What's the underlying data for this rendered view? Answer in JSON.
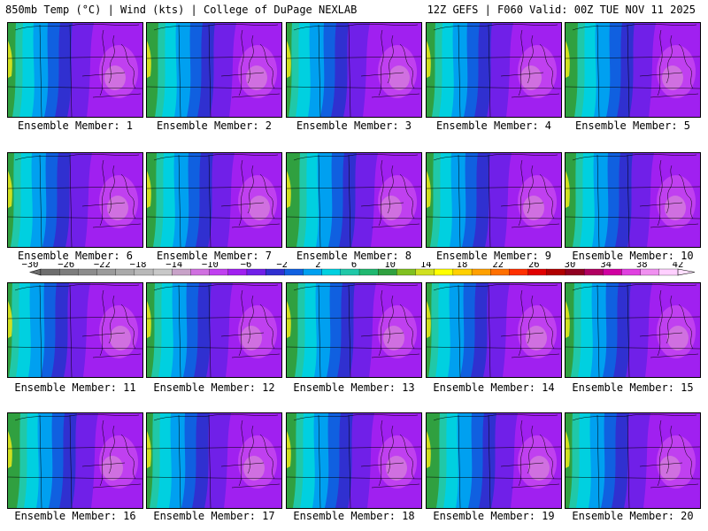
{
  "header": {
    "title_left": "850mb Temp (°C) | Wind (kts) | College of DuPage NEXLAB",
    "title_right": "12Z GEFS | F060 Valid: 00Z TUE NOV 11 2025"
  },
  "members": [
    {
      "label": "Ensemble Member: 1"
    },
    {
      "label": "Ensemble Member: 2"
    },
    {
      "label": "Ensemble Member: 3"
    },
    {
      "label": "Ensemble Member: 4"
    },
    {
      "label": "Ensemble Member: 5"
    },
    {
      "label": "Ensemble Member: 6"
    },
    {
      "label": "Ensemble Member: 7"
    },
    {
      "label": "Ensemble Member: 8"
    },
    {
      "label": "Ensemble Member: 9"
    },
    {
      "label": "Ensemble Member: 10"
    },
    {
      "label": "Ensemble Member: 11"
    },
    {
      "label": "Ensemble Member: 12"
    },
    {
      "label": "Ensemble Member: 13"
    },
    {
      "label": "Ensemble Member: 14"
    },
    {
      "label": "Ensemble Member: 15"
    },
    {
      "label": "Ensemble Member: 16"
    },
    {
      "label": "Ensemble Member: 17"
    },
    {
      "label": "Ensemble Member: 18"
    },
    {
      "label": "Ensemble Member: 19"
    },
    {
      "label": "Ensemble Member: 20"
    }
  ],
  "colorbar": {
    "ticks": [
      "−30",
      "−26",
      "−22",
      "−18",
      "−14",
      "−10",
      "−6",
      "−2",
      "2",
      "6",
      "10",
      "14",
      "18",
      "22",
      "26",
      "30",
      "34",
      "38",
      "42"
    ],
    "colors": [
      "#6e6e6e",
      "#7d7d7d",
      "#8c8c8c",
      "#9b9b9b",
      "#aaaaaa",
      "#b9b9b9",
      "#c8c8c8",
      "#c8a2c8",
      "#d070e0",
      "#c040f0",
      "#a020f0",
      "#7020e8",
      "#3030d0",
      "#1060e0",
      "#00a0f0",
      "#00d0e0",
      "#20c8a8",
      "#20b870",
      "#30a040",
      "#80c020",
      "#d0e020",
      "#ffff00",
      "#ffd000",
      "#ffa000",
      "#ff7000",
      "#ff3000",
      "#e00000",
      "#b00000",
      "#900020",
      "#b00060",
      "#d000a0",
      "#e040e0",
      "#f090f0",
      "#ffd0ff"
    ]
  },
  "colors": {
    "border": "#000000",
    "map_lines": "#000000"
  }
}
